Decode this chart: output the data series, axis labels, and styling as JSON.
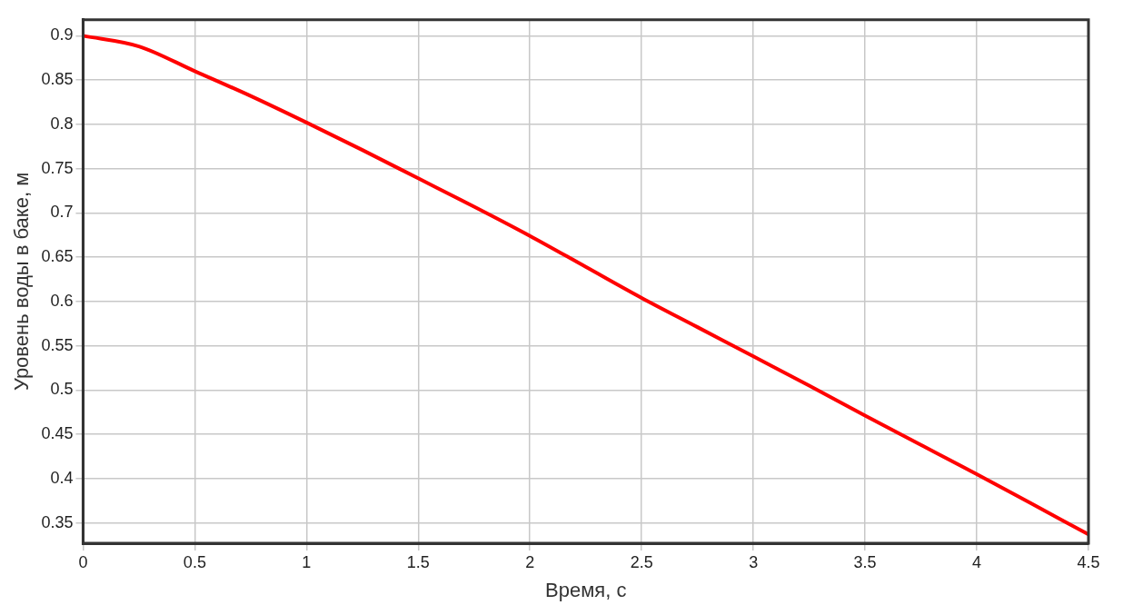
{
  "chart_data": {
    "type": "line",
    "xlabel": "Время, с",
    "ylabel": "Уровень воды в баке, м",
    "x": [
      0,
      0.25,
      0.5,
      0.75,
      1,
      1.25,
      1.5,
      1.75,
      2,
      2.25,
      2.5,
      2.75,
      3,
      3.25,
      3.5,
      3.75,
      4,
      4.25,
      4.5
    ],
    "series": [
      {
        "color": "#ff0000",
        "values": [
          0.9,
          0.888,
          0.86,
          0.832,
          0.802,
          0.771,
          0.739,
          0.707,
          0.674,
          0.639,
          0.604,
          0.571,
          0.538,
          0.505,
          0.471,
          0.438,
          0.405,
          0.371,
          0.337
        ]
      }
    ],
    "xlim": [
      0,
      4.5
    ],
    "ylim": [
      0.327,
      0.918
    ],
    "xticks": [
      0,
      0.5,
      1,
      1.5,
      2,
      2.5,
      3,
      3.5,
      4,
      4.5
    ],
    "yticks": [
      0.35,
      0.4,
      0.45,
      0.5,
      0.55,
      0.6,
      0.65,
      0.7,
      0.75,
      0.8,
      0.85,
      0.9
    ],
    "grid": true,
    "legend": false,
    "marker": "none",
    "line_style": "solid"
  }
}
